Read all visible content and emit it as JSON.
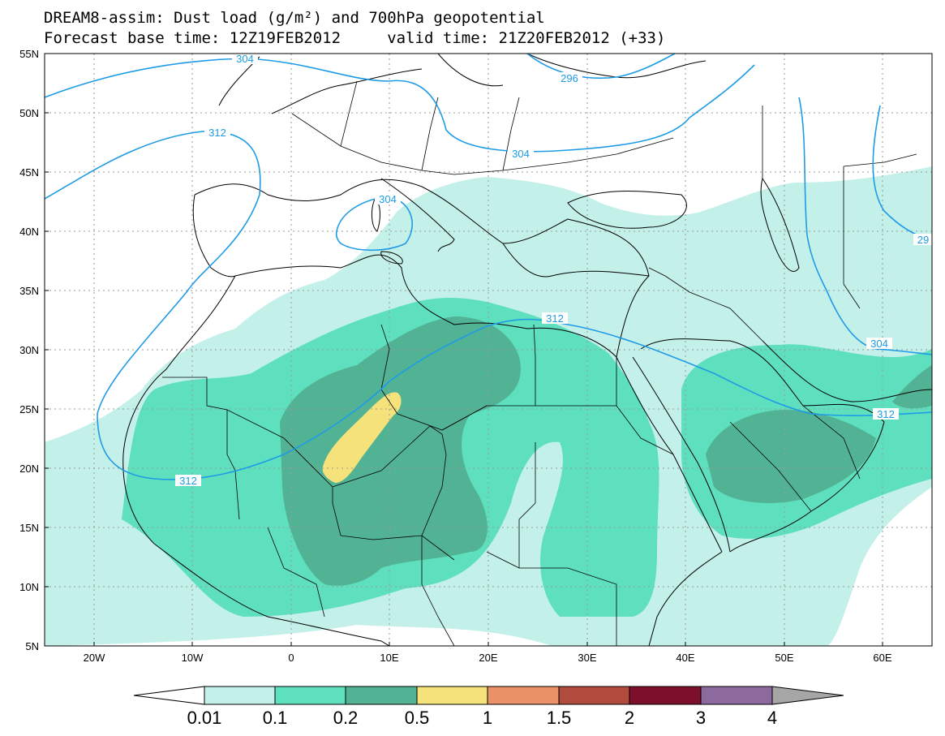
{
  "title": {
    "line1": "DREAM8-assim: Dust load (g/m²) and 700hPa geopotential",
    "line2": "Forecast base time: 12Z19FEB2012     valid time: 21Z20FEB2012 (+33)"
  },
  "axes": {
    "lat_labels": [
      "55N",
      "50N",
      "45N",
      "40N",
      "35N",
      "30N",
      "25N",
      "20N",
      "15N",
      "10N",
      "5N"
    ],
    "lon_labels": [
      "20W",
      "10W",
      "0",
      "10E",
      "20E",
      "30E",
      "40E",
      "50E",
      "60E"
    ]
  },
  "contours": {
    "color": "#1e9be6",
    "labels": [
      "304",
      "296",
      "312",
      "304",
      "304",
      "312",
      "312",
      "304",
      "312",
      "29"
    ]
  },
  "colorbar": {
    "tick_labels": [
      "0.01",
      "0.1",
      "0.2",
      "0.5",
      "1",
      "1.5",
      "2",
      "3",
      "4"
    ],
    "colors": [
      "#ffffff",
      "#c4f0ea",
      "#5ee0be",
      "#52b394",
      "#f6e27a",
      "#ea9168",
      "#b04b3e",
      "#7e0f2a",
      "#8c6a9e",
      "#a6a6a6"
    ]
  }
}
